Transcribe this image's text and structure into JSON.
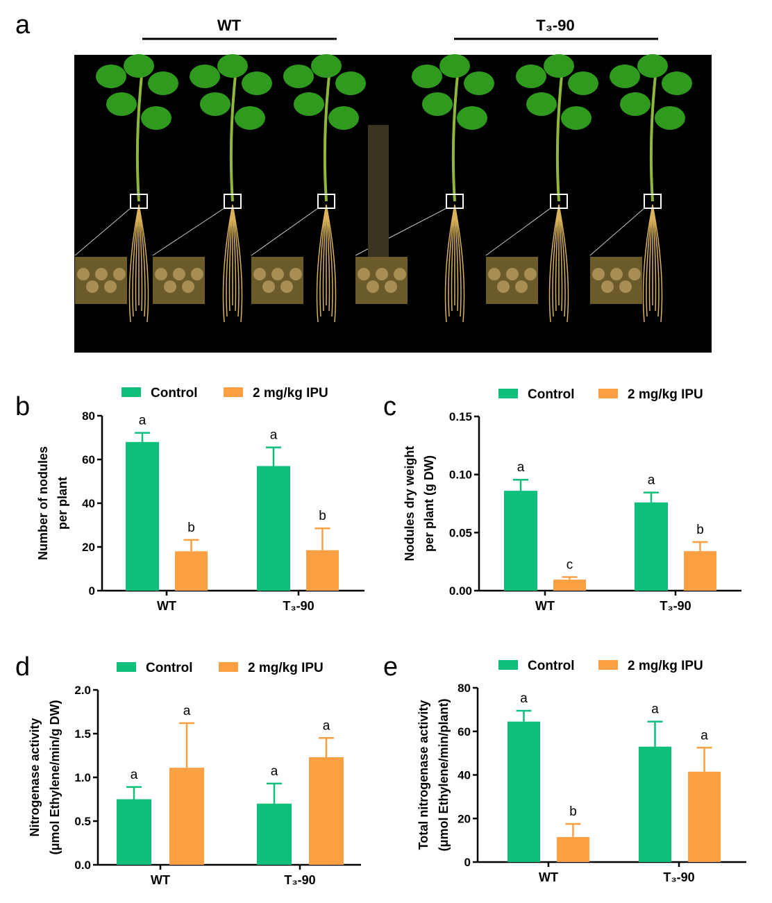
{
  "figure": {
    "panel_a": {
      "letter": "a",
      "group_labels": [
        "WT",
        "T₃-90"
      ]
    }
  },
  "colors": {
    "control": "#0dbf7a",
    "ipu": "#fba042",
    "axis": "#000000",
    "photo_bg": "#000000"
  },
  "chart_data": [
    {
      "panel": "b",
      "type": "bar",
      "legend": [
        "Control",
        "2 mg/kg IPU"
      ],
      "legend_position": "top",
      "categories": [
        "WT",
        "T₃-90"
      ],
      "ylabel": [
        "Number of nodules",
        "per plant"
      ],
      "ylim": [
        0,
        80
      ],
      "yticks": [
        "0",
        "20",
        "40",
        "60",
        "80"
      ],
      "grid": false,
      "series": [
        {
          "name": "Control",
          "values": [
            68,
            57
          ],
          "errors": [
            4.2,
            8.5
          ],
          "letters": [
            "a",
            "a"
          ]
        },
        {
          "name": "2 mg/kg IPU",
          "values": [
            18,
            18.5
          ],
          "errors": [
            5.2,
            10
          ],
          "letters": [
            "b",
            "b"
          ]
        }
      ]
    },
    {
      "panel": "c",
      "type": "bar",
      "legend": [
        "Control",
        "2 mg/kg IPU"
      ],
      "legend_position": "top",
      "categories": [
        "WT",
        "T₃-90"
      ],
      "ylabel": [
        "Nodules dry weight",
        "per plant (g DW)"
      ],
      "ylim": [
        0,
        0.15
      ],
      "yticks": [
        "0.00",
        "0.05",
        "0.10",
        "0.15"
      ],
      "grid": false,
      "series": [
        {
          "name": "Control",
          "values": [
            0.086,
            0.076
          ],
          "errors": [
            0.0095,
            0.0085
          ],
          "letters": [
            "a",
            "a"
          ]
        },
        {
          "name": "2 mg/kg IPU",
          "values": [
            0.0095,
            0.034
          ],
          "errors": [
            0.0022,
            0.0079
          ],
          "letters": [
            "c",
            "b"
          ]
        }
      ]
    },
    {
      "panel": "d",
      "type": "bar",
      "legend": [
        "Control",
        "2 mg/kg IPU"
      ],
      "legend_position": "top",
      "categories": [
        "WT",
        "T₃-90"
      ],
      "ylabel": [
        "Nitrogenase activity",
        "(μmol Ethylene/min/g DW)"
      ],
      "ylim": [
        0,
        2.0
      ],
      "yticks": [
        "0.0",
        "0.5",
        "1.0",
        "1.5",
        "2.0"
      ],
      "grid": false,
      "series": [
        {
          "name": "Control",
          "values": [
            0.75,
            0.7
          ],
          "errors": [
            0.14,
            0.23
          ],
          "letters": [
            "a",
            "a"
          ]
        },
        {
          "name": "2 mg/kg IPU",
          "values": [
            1.11,
            1.23
          ],
          "errors": [
            0.51,
            0.22
          ],
          "letters": [
            "a",
            "a"
          ]
        }
      ]
    },
    {
      "panel": "e",
      "type": "bar",
      "legend": [
        "Control",
        "2 mg/kg IPU"
      ],
      "legend_position": "top",
      "categories": [
        "WT",
        "T₃-90"
      ],
      "ylabel": [
        "Total nitrogenase activity",
        "(μmol Ethylene/min/plant)"
      ],
      "ylim": [
        0,
        80
      ],
      "yticks": [
        "0",
        "20",
        "40",
        "60",
        "80"
      ],
      "grid": false,
      "series": [
        {
          "name": "Control",
          "values": [
            64.5,
            53
          ],
          "errors": [
            5,
            11.5
          ],
          "letters": [
            "a",
            "a"
          ]
        },
        {
          "name": "2 mg/kg IPU",
          "values": [
            11.5,
            41.5
          ],
          "errors": [
            6,
            11
          ],
          "letters": [
            "b",
            "a"
          ]
        }
      ]
    }
  ]
}
